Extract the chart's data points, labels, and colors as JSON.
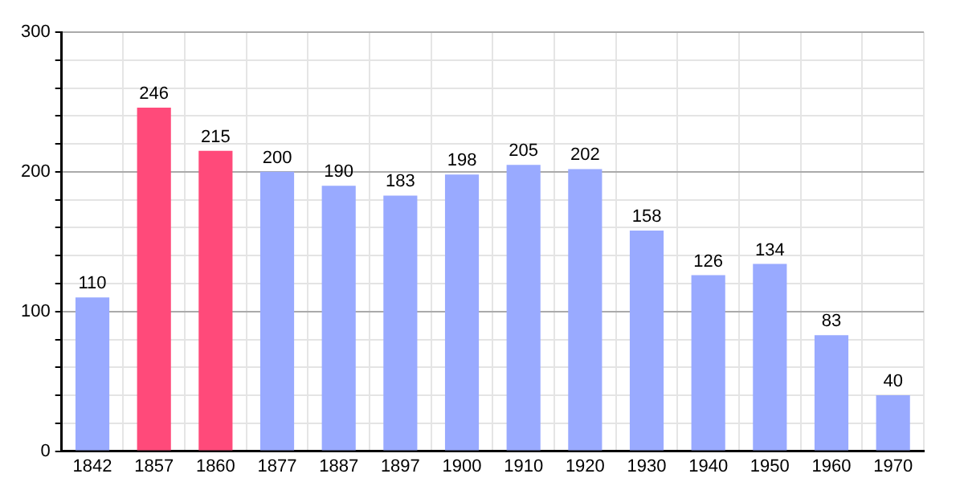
{
  "chart_data": {
    "type": "bar",
    "categories": [
      "1842",
      "1857",
      "1860",
      "1877",
      "1887",
      "1897",
      "1900",
      "1910",
      "1920",
      "1930",
      "1940",
      "1950",
      "1960",
      "1970"
    ],
    "values": [
      110,
      246,
      215,
      200,
      190,
      183,
      198,
      205,
      202,
      158,
      126,
      134,
      83,
      40
    ],
    "colors": [
      "#99aaff",
      "#ff4a7a",
      "#ff4a7a",
      "#99aaff",
      "#99aaff",
      "#99aaff",
      "#99aaff",
      "#99aaff",
      "#99aaff",
      "#99aaff",
      "#99aaff",
      "#99aaff",
      "#99aaff",
      "#99aaff"
    ],
    "ylim": [
      0,
      300
    ],
    "yticks": [
      0,
      {
        "value": 20,
        "label": null
      },
      {
        "value": 40,
        "label": null
      },
      {
        "value": 60,
        "label": null
      },
      {
        "value": 80,
        "label": null
      },
      100,
      {
        "value": 120,
        "label": null
      },
      {
        "value": 140,
        "label": null
      },
      {
        "value": 160,
        "label": null
      },
      {
        "value": 180,
        "label": null
      },
      200,
      {
        "value": 220,
        "label": null
      },
      {
        "value": 240,
        "label": null
      },
      {
        "value": 260,
        "label": null
      },
      {
        "value": 280,
        "label": null
      },
      300
    ],
    "grid": true,
    "data_labels": true,
    "legend": false
  }
}
